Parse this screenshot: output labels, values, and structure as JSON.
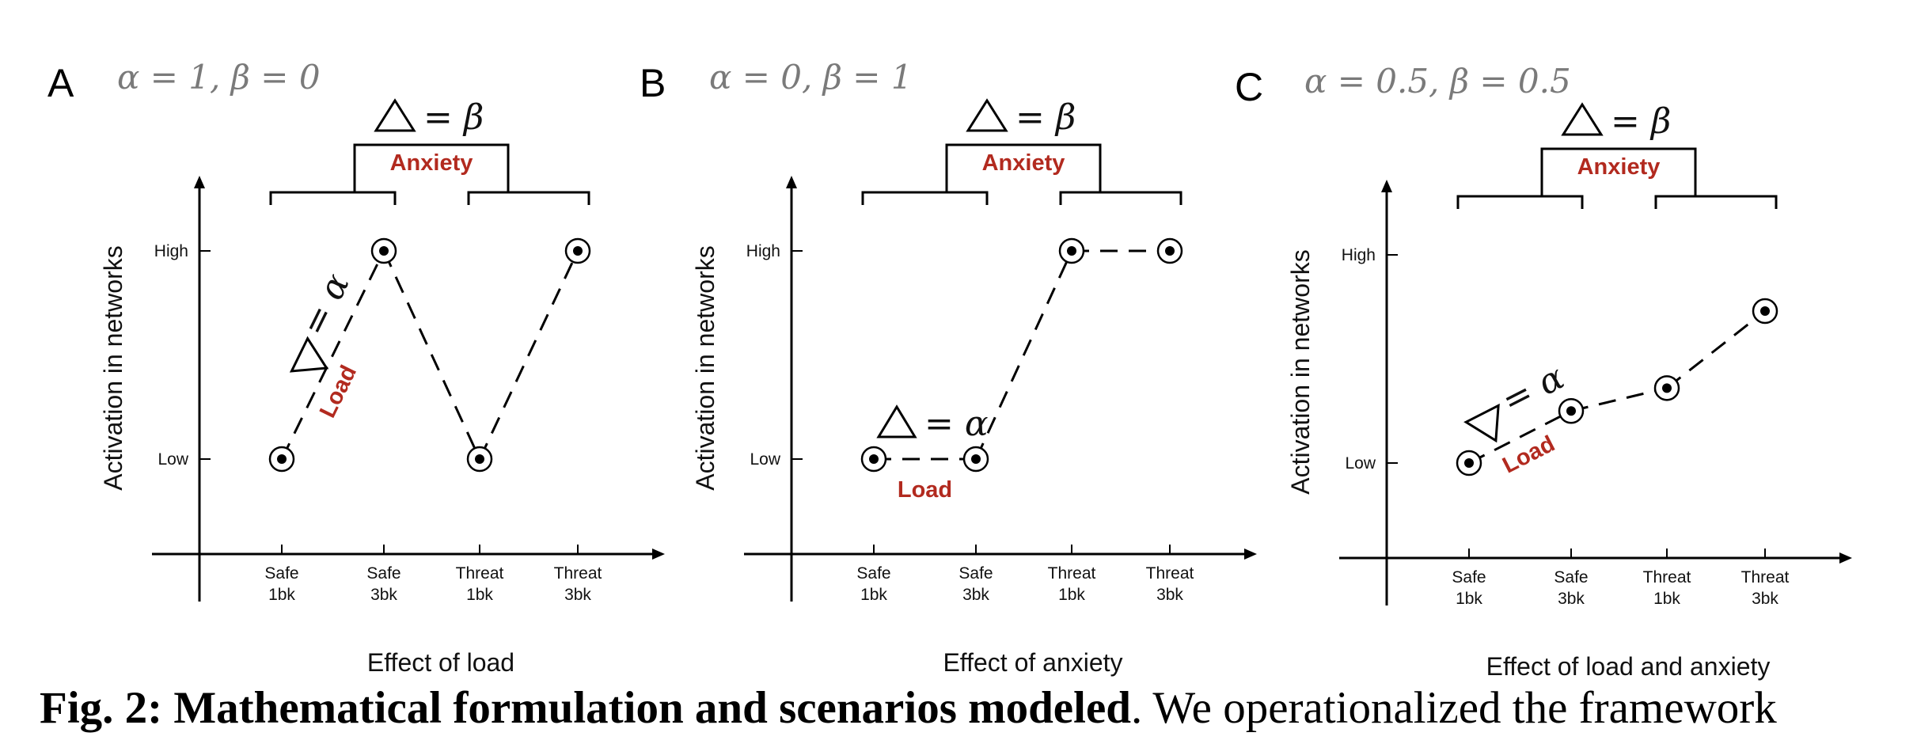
{
  "chart_data": [
    {
      "panel": "A",
      "type": "line",
      "params": "α = 1, β = 0",
      "categories": [
        "Safe 1bk",
        "Safe 3bk",
        "Threat 1bk",
        "Threat 3bk"
      ],
      "tick_lines": [
        [
          "Safe",
          "1bk"
        ],
        [
          "Safe",
          "3bk"
        ],
        [
          "Threat",
          "1bk"
        ],
        [
          "Threat",
          "3bk"
        ]
      ],
      "y_ticks": [
        "High",
        "Low"
      ],
      "ylabel": "Activation in networks",
      "xlabel": "Effect of load",
      "values": [
        0,
        1,
        0,
        1
      ],
      "dashed_segments": [
        [
          0,
          1
        ],
        [
          1,
          2
        ],
        [
          2,
          3
        ]
      ],
      "anxiety_label": "Anxiety",
      "beta_label": "= β",
      "load_label": "Load",
      "alpha_label": "= α",
      "load_at": "slope"
    },
    {
      "panel": "B",
      "type": "line",
      "params": "α = 0, β = 1",
      "categories": [
        "Safe 1bk",
        "Safe 3bk",
        "Threat 1bk",
        "Threat 3bk"
      ],
      "tick_lines": [
        [
          "Safe",
          "1bk"
        ],
        [
          "Safe",
          "3bk"
        ],
        [
          "Threat",
          "1bk"
        ],
        [
          "Threat",
          "3bk"
        ]
      ],
      "y_ticks": [
        "High",
        "Low"
      ],
      "ylabel": "Activation in networks",
      "xlabel": "Effect of anxiety",
      "values": [
        0,
        0,
        1,
        1
      ],
      "dashed_segments": [
        [
          0,
          1
        ],
        [
          1,
          2
        ],
        [
          2,
          3
        ]
      ],
      "anxiety_label": "Anxiety",
      "beta_label": "= β",
      "load_label": "Load",
      "alpha_label": "= α",
      "load_at": "flat"
    },
    {
      "panel": "C",
      "type": "line",
      "params": "α = 0.5, β = 0.5",
      "categories": [
        "Safe 1bk",
        "Safe 3bk",
        "Threat 1bk",
        "Threat 3bk"
      ],
      "tick_lines": [
        [
          "Safe",
          "1bk"
        ],
        [
          "Safe",
          "3bk"
        ],
        [
          "Threat",
          "1bk"
        ],
        [
          "Threat",
          "3bk"
        ]
      ],
      "y_ticks": [
        "High",
        "Low"
      ],
      "ylabel": "Activation in networks",
      "xlabel": "Effect of load and anxiety",
      "values": [
        0,
        0.25,
        0.36,
        0.73
      ],
      "dashed_segments": [
        [
          0,
          1
        ],
        [
          1,
          2
        ],
        [
          2,
          3
        ]
      ],
      "anxiety_label": "Anxiety",
      "beta_label": "= β",
      "load_label": "Load",
      "alpha_label": "= α",
      "load_at": "slope"
    }
  ],
  "caption": {
    "bold": "Fig. 2: Mathematical formulation and scenarios modeled",
    "rest": ". We operationalized the framework"
  }
}
